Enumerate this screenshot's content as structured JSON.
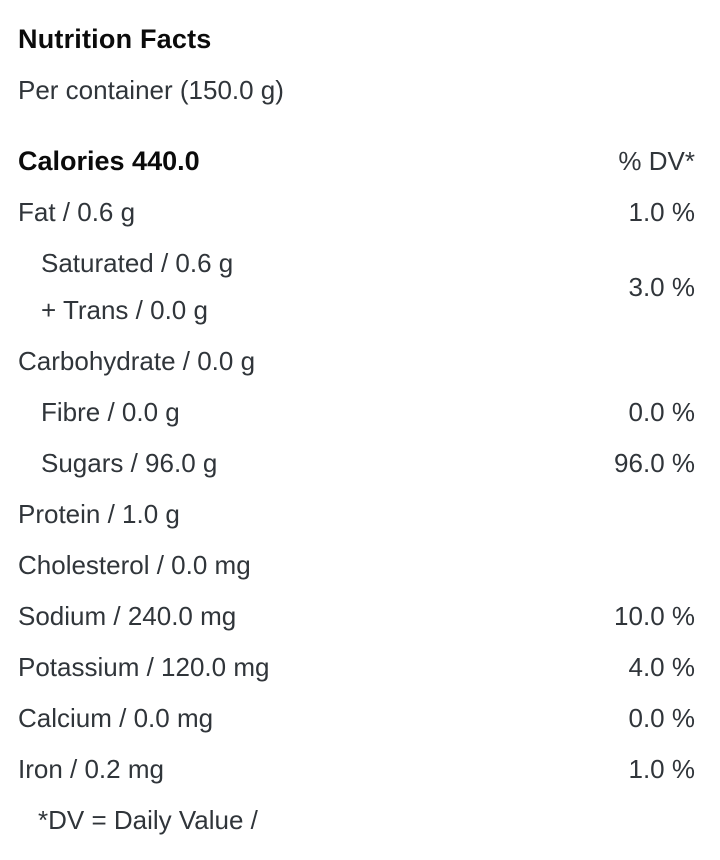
{
  "label": {
    "title": "Nutrition Facts",
    "serving": "Per container (150.0 g)",
    "calories": {
      "label": "Calories 440.0",
      "dv_header": "% DV*"
    },
    "rows": [
      {
        "label": "Fat / 0.6 g",
        "dv": "1.0 %"
      },
      {
        "lines": {
          "saturated": "Saturated / 0.6 g",
          "trans": "+ Trans / 0.0 g"
        },
        "dv": "3.0 %"
      },
      {
        "label": "Carbohydrate / 0.0 g",
        "dv": ""
      },
      {
        "label": "Fibre / 0.0 g",
        "dv": "0.0 %"
      },
      {
        "label": "Sugars / 96.0 g",
        "dv": "96.0 %"
      },
      {
        "label": "Protein / 1.0 g",
        "dv": ""
      },
      {
        "label": "Cholesterol / 0.0 mg",
        "dv": ""
      },
      {
        "label": "Sodium / 240.0 mg",
        "dv": "10.0 %"
      },
      {
        "label": "Potassium / 120.0 mg",
        "dv": "4.0 %"
      },
      {
        "label": "Calcium / 0.0 mg",
        "dv": "0.0 %"
      },
      {
        "label": "Iron / 0.2 mg",
        "dv": "1.0 %"
      }
    ],
    "footnote": "*DV = Daily Value /",
    "colors": {
      "background": "#ffffff",
      "heading": "#0b0b0b",
      "body_text": "#30353a"
    }
  }
}
